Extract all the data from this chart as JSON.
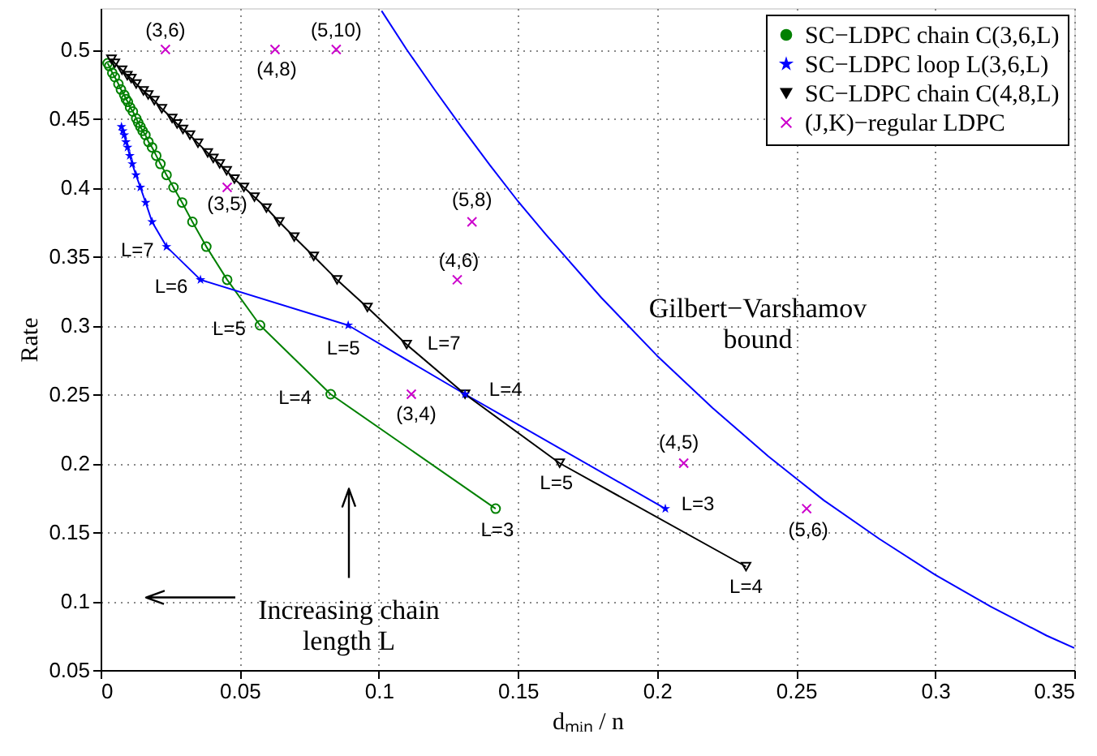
{
  "chart_data": {
    "type": "line",
    "xlabel": "dₘᵢₙ / n",
    "ylabel": "Rate",
    "xlim": [
      0,
      0.35
    ],
    "ylim": [
      0.05,
      0.53
    ],
    "xticks": [
      0,
      0.05,
      0.1,
      0.15,
      0.2,
      0.25,
      0.3,
      0.35
    ],
    "yticks": [
      0.05,
      0.1,
      0.15,
      0.2,
      0.25,
      0.3,
      0.35,
      0.4,
      0.45,
      0.5
    ],
    "grid": true,
    "legend": "top right",
    "line_style": "solid",
    "series": [
      {
        "name": "SC−LDPC chain C(3,6,L)",
        "marker": "circle",
        "color": "#008000",
        "x": [
          0.142,
          0.0827,
          0.0573,
          0.0455,
          0.038,
          0.033,
          0.0293,
          0.0262,
          0.0237,
          0.0215,
          0.02,
          0.0185,
          0.0172,
          0.0161,
          0.0151,
          0.0143,
          0.0135,
          0.0128,
          0.0116,
          0.0106,
          0.0098,
          0.0091,
          0.0085,
          0.0073,
          0.0064,
          0.0051,
          0.0042,
          0.0031,
          0.0025
        ],
        "values": [
          0.167,
          0.25,
          0.3,
          0.333,
          0.357,
          0.375,
          0.389,
          0.4,
          0.409,
          0.417,
          0.423,
          0.429,
          0.433,
          0.438,
          0.441,
          0.444,
          0.447,
          0.45,
          0.455,
          0.458,
          0.462,
          0.464,
          0.467,
          0.471,
          0.475,
          0.48,
          0.483,
          0.488,
          0.49
        ]
      },
      {
        "name": "SC−LDPC loop L(3,6,L)",
        "marker": "star",
        "color": "#0000ff",
        "x": [
          0.203,
          0.131,
          0.089,
          0.0359,
          0.0237,
          0.0185,
          0.0162,
          0.0143,
          0.0127,
          0.0114,
          0.0105,
          0.0097,
          0.0091,
          0.0085,
          0.008,
          0.0075
        ],
        "values": [
          0.167,
          0.25,
          0.3,
          0.333,
          0.357,
          0.375,
          0.389,
          0.4,
          0.409,
          0.417,
          0.423,
          0.429,
          0.433,
          0.438,
          0.441,
          0.444
        ]
      },
      {
        "name": "SC−LDPC chain C(4,8,L)",
        "marker": "triangle",
        "color": "#000000",
        "x": [
          0.232,
          0.165,
          0.131,
          0.11,
          0.0959,
          0.085,
          0.0766,
          0.0696,
          0.0642,
          0.0596,
          0.0553,
          0.0515,
          0.0481,
          0.0453,
          0.0428,
          0.0405,
          0.0385,
          0.035,
          0.0321,
          0.0296,
          0.0275,
          0.0257,
          0.022,
          0.0193,
          0.0171,
          0.0154,
          0.0128,
          0.011,
          0.0096,
          0.0077,
          0.0051,
          0.0039
        ],
        "values": [
          0.125,
          0.2,
          0.25,
          0.286,
          0.313,
          0.333,
          0.35,
          0.364,
          0.375,
          0.385,
          0.393,
          0.4,
          0.406,
          0.412,
          0.417,
          0.421,
          0.425,
          0.432,
          0.438,
          0.442,
          0.446,
          0.45,
          0.457,
          0.463,
          0.467,
          0.47,
          0.475,
          0.479,
          0.481,
          0.485,
          0.49,
          0.493
        ]
      },
      {
        "name": "(J,K)−regular LDPC",
        "type": "scatter",
        "marker": "cross",
        "color": "#cc00cc",
        "x": [
          0.0233,
          0.0627,
          0.0847,
          0.0455,
          0.1335,
          0.1282,
          0.1117,
          0.2096,
          0.2538
        ],
        "values": [
          0.5,
          0.5,
          0.5,
          0.4,
          0.375,
          0.333,
          0.25,
          0.2,
          0.167
        ]
      },
      {
        "marker": "none",
        "color": "#0000ff",
        "x": [
          0.101,
          0.11,
          0.12,
          0.13,
          0.14,
          0.15,
          0.16,
          0.18,
          0.2,
          0.22,
          0.24,
          0.25,
          0.26,
          0.28,
          0.3,
          0.32,
          0.34,
          0.35
        ],
        "values": [
          0.528,
          0.5,
          0.471,
          0.443,
          0.416,
          0.39,
          0.366,
          0.32,
          0.278,
          0.24,
          0.205,
          0.189,
          0.173,
          0.145,
          0.119,
          0.096,
          0.075,
          0.066
        ]
      }
    ],
    "annotations": [
      {
        "text": "(3,6)",
        "x": 0.0233,
        "y": 0.5
      },
      {
        "text": "(4,8)",
        "x": 0.0627,
        "y": 0.5
      },
      {
        "text": "(5,10)",
        "x": 0.0847,
        "y": 0.5
      },
      {
        "text": "(3,5)",
        "x": 0.0455,
        "y": 0.4
      },
      {
        "text": "(5,8)",
        "x": 0.1335,
        "y": 0.375
      },
      {
        "text": "(4,6)",
        "x": 0.1282,
        "y": 0.333
      },
      {
        "text": "(3,4)",
        "x": 0.1117,
        "y": 0.25
      },
      {
        "text": "(4,5)",
        "x": 0.2096,
        "y": 0.2
      },
      {
        "text": "(5,6)",
        "x": 0.2538,
        "y": 0.167
      },
      {
        "text": "L=7",
        "x": 0.0237,
        "y": 0.357
      },
      {
        "text": "L=6",
        "x": 0.0359,
        "y": 0.333
      },
      {
        "text": "L=5",
        "x": 0.0573,
        "y": 0.3
      },
      {
        "text": "L=5",
        "x": 0.089,
        "y": 0.3
      },
      {
        "text": "L=7",
        "x": 0.11,
        "y": 0.286
      },
      {
        "text": "L=4",
        "x": 0.0827,
        "y": 0.25
      },
      {
        "text": "L=4",
        "x": 0.131,
        "y": 0.25
      },
      {
        "text": "L=5",
        "x": 0.165,
        "y": 0.2
      },
      {
        "text": "L=3",
        "x": 0.142,
        "y": 0.167
      },
      {
        "text": "L=3",
        "x": 0.203,
        "y": 0.167
      },
      {
        "text": "L=4",
        "x": 0.232,
        "y": 0.125
      },
      "Gilbert−Varshamov\nbound",
      "Increasing chain\nlength L"
    ]
  }
}
